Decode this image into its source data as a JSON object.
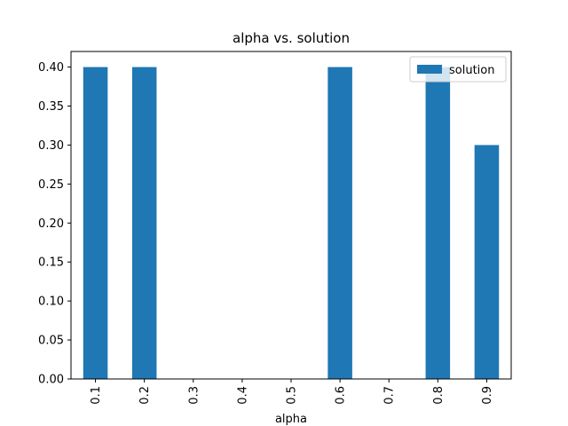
{
  "chart_data": {
    "type": "bar",
    "title": "alpha vs. solution",
    "xlabel": "alpha",
    "ylabel": "",
    "categories": [
      "0.1",
      "0.2",
      "0.3",
      "0.4",
      "0.5",
      "0.6",
      "0.7",
      "0.8",
      "0.9"
    ],
    "series": [
      {
        "name": "solution",
        "values": [
          0.4,
          0.4,
          0.0,
          0.0,
          0.0,
          0.4,
          0.0,
          0.4,
          0.3
        ],
        "color": "#1f77b4"
      }
    ],
    "ylim": [
      0,
      0.42
    ],
    "yticks": [
      0.0,
      0.05,
      0.1,
      0.15,
      0.2,
      0.25,
      0.3,
      0.35,
      0.4
    ],
    "ytick_labels": [
      "0.00",
      "0.05",
      "0.10",
      "0.15",
      "0.20",
      "0.25",
      "0.30",
      "0.35",
      "0.40"
    ],
    "xtick_rotation": "vertical",
    "legend_position": "top-right",
    "grid": false
  }
}
